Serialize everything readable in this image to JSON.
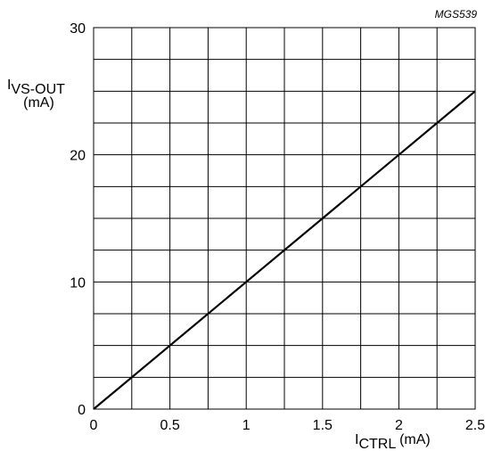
{
  "chart_data": {
    "type": "line",
    "reference_label": "MGS539",
    "x": [
      0,
      0.5,
      1,
      1.5,
      2,
      2.5
    ],
    "series": [
      {
        "values": [
          0,
          5,
          10,
          15,
          20,
          25
        ],
        "color": "#000000"
      }
    ],
    "xlim": [
      0,
      2.5
    ],
    "ylim": [
      0,
      30
    ],
    "x_ticks": [
      "0",
      "0.5",
      "1",
      "1.5",
      "2",
      "2.5"
    ],
    "y_ticks": [
      "0",
      "10",
      "20",
      "30"
    ],
    "xlabel": {
      "main": "I",
      "sub": "CTRL",
      "unit": " (mA)"
    },
    "ylabel": {
      "main": "I",
      "sub": "VS-OUT",
      "unit": "(mA)"
    },
    "grid": true
  }
}
